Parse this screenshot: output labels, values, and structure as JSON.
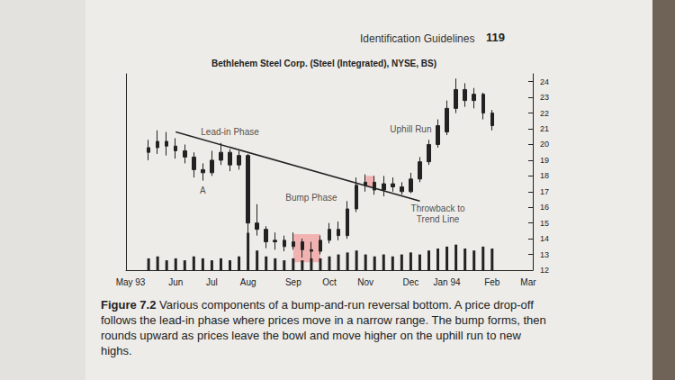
{
  "page": {
    "header": "Identification Guidelines",
    "page_number": 119,
    "caption_label": "Figure 7.2",
    "caption": "Various components of a bump-and-run reversal bottom. A price drop-off follows the lead-in phase where prices move in a narrow range. The bump forms, then rounds upward as prices leave the bowl and move higher on the uphill run to new highs."
  },
  "chart_data": {
    "type": "candlestick",
    "title": "Bethlehem Steel Corp. (Steel (Integrated), NYSE, BS)",
    "categories": [
      "May 93",
      null,
      null,
      null,
      null,
      "Jun",
      null,
      null,
      null,
      "Jul",
      null,
      null,
      null,
      "Aug",
      null,
      null,
      null,
      null,
      "Sep",
      null,
      null,
      null,
      "Oct",
      null,
      null,
      null,
      "Nov",
      null,
      null,
      null,
      null,
      "Dec",
      null,
      null,
      null,
      "Jan 94",
      null,
      null,
      null,
      null,
      "Feb",
      null,
      null,
      null,
      "Mar"
    ],
    "series": [
      {
        "type": "candlestick",
        "color": "#222222",
        "values": [
          null,
          null,
          [
            19.5,
            19.8,
            19.0,
            20.3
          ],
          [
            19.8,
            20.2,
            19.4,
            20.9
          ],
          [
            20.2,
            19.9,
            19.3,
            20.8
          ],
          [
            19.9,
            19.6,
            19.1,
            20.4
          ],
          [
            19.6,
            19.2,
            18.8,
            20.0
          ],
          [
            19.2,
            18.4,
            17.9,
            19.5
          ],
          [
            18.4,
            18.2,
            17.7,
            18.8
          ],
          [
            18.2,
            19.0,
            18.0,
            19.6
          ],
          [
            19.0,
            19.5,
            18.7,
            20.1
          ],
          [
            19.5,
            18.7,
            18.3,
            19.7
          ],
          [
            18.7,
            19.3,
            18.4,
            19.6
          ],
          [
            19.3,
            15.0,
            14.3,
            19.4
          ],
          [
            15.0,
            14.6,
            14.2,
            16.2
          ],
          [
            14.6,
            13.8,
            13.4,
            14.8
          ],
          [
            13.8,
            13.9,
            13.3,
            14.4
          ],
          [
            13.9,
            13.5,
            13.2,
            14.2
          ],
          [
            13.5,
            13.8,
            13.3,
            14.4
          ],
          [
            13.8,
            13.3,
            12.8,
            14.0
          ],
          [
            13.3,
            13.2,
            12.7,
            13.8
          ],
          [
            13.2,
            13.9,
            13.0,
            14.2
          ],
          [
            13.9,
            14.6,
            13.7,
            15.0
          ],
          [
            14.6,
            14.2,
            13.9,
            15.1
          ],
          [
            14.2,
            15.9,
            14.0,
            16.4
          ],
          [
            15.9,
            17.4,
            15.7,
            17.9
          ],
          [
            17.4,
            17.6,
            17.0,
            18.1
          ],
          [
            17.6,
            17.1,
            16.8,
            18.0
          ],
          [
            17.1,
            17.5,
            16.7,
            18.0
          ],
          [
            17.5,
            17.3,
            17.0,
            17.9
          ],
          [
            17.3,
            17.0,
            16.8,
            17.6
          ],
          [
            17.0,
            17.8,
            16.9,
            18.2
          ],
          [
            17.8,
            18.9,
            17.6,
            19.2
          ],
          [
            18.9,
            20.0,
            18.7,
            20.3
          ],
          [
            20.0,
            21.2,
            19.8,
            21.6
          ],
          [
            20.8,
            22.3,
            20.6,
            22.8
          ],
          [
            22.3,
            23.5,
            22.0,
            24.2
          ],
          [
            23.5,
            22.8,
            22.4,
            23.9
          ],
          [
            22.8,
            23.2,
            22.3,
            23.6
          ],
          [
            23.2,
            22.0,
            21.6,
            23.3
          ],
          [
            22.0,
            21.2,
            20.9,
            22.2
          ],
          null,
          null,
          null,
          null
        ]
      },
      {
        "type": "bar",
        "axis": "y2",
        "color": "#222222",
        "values": [
          null,
          null,
          0.6,
          0.7,
          0.5,
          0.6,
          0.5,
          0.7,
          0.6,
          0.5,
          0.6,
          0.5,
          0.7,
          1.9,
          1.0,
          0.7,
          0.6,
          0.5,
          0.6,
          0.5,
          0.6,
          0.6,
          0.7,
          0.8,
          0.9,
          1.0,
          0.8,
          0.7,
          0.8,
          0.7,
          0.8,
          0.9,
          0.8,
          1.0,
          1.1,
          1.2,
          1.3,
          1.1,
          1.0,
          1.2,
          1.1,
          null,
          null,
          null,
          null
        ]
      },
      {
        "type": "line",
        "color": "#222222",
        "line_style": "solid",
        "values": [
          null,
          null,
          null,
          null,
          null,
          20.8,
          null,
          null,
          null,
          null,
          null,
          null,
          null,
          null,
          null,
          null,
          null,
          null,
          null,
          null,
          null,
          null,
          null,
          null,
          null,
          null,
          null,
          null,
          null,
          null,
          null,
          null,
          16.4,
          null,
          null,
          null,
          null,
          null,
          null,
          null,
          null,
          null,
          null,
          null,
          null
        ]
      }
    ],
    "ylim": [
      12,
      24.5
    ],
    "yticks": [
      12,
      13,
      14,
      15,
      16,
      17,
      18,
      19,
      20,
      21,
      22,
      23,
      24
    ],
    "y2lim": [
      0,
      10
    ],
    "y2ticks": [],
    "grid": false,
    "annotations": [
      {
        "text": "Lead-in Phase",
        "at": [
          11,
          20.8
        ]
      },
      {
        "text": "A",
        "at": [
          8,
          17.1
        ]
      },
      {
        "text": "Bump Phase",
        "at": [
          20,
          16.6
        ]
      },
      {
        "text": "Uphill Run",
        "at": [
          31,
          21.0
        ]
      },
      {
        "text": "Throwback to\nTrend Line",
        "at": [
          34,
          15.6
        ]
      }
    ],
    "highlights": [
      {
        "x": [
          18,
          21
        ],
        "y": [
          12.5,
          14.3
        ],
        "color": "#f2a0a0"
      },
      {
        "x": [
          26,
          27
        ],
        "y": [
          17.3,
          18.0
        ],
        "color": "#f2a0a0"
      }
    ]
  }
}
